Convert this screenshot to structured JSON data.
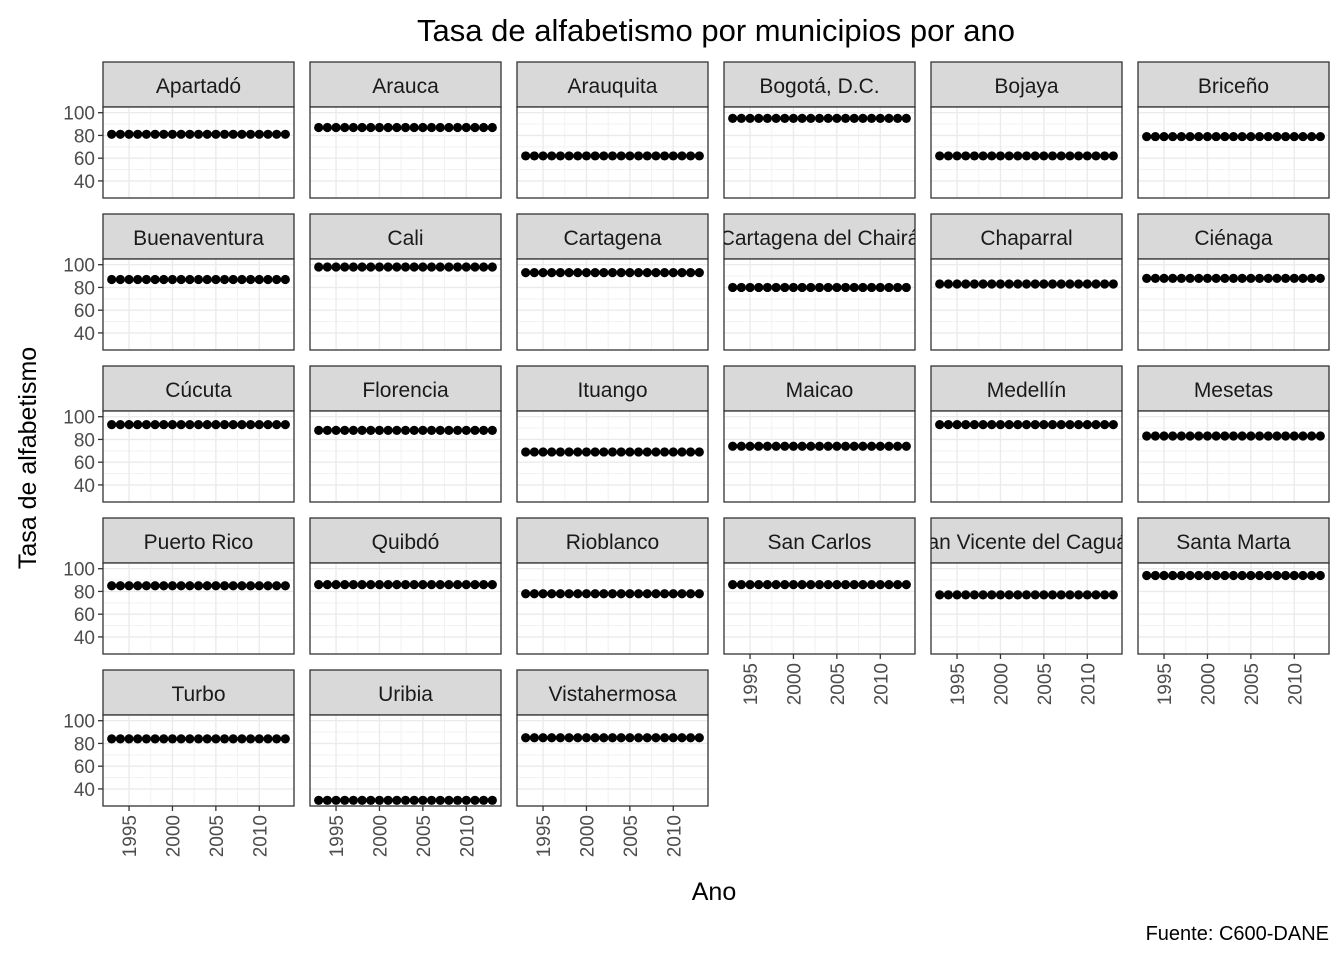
{
  "chart_data": {
    "type": "scatter",
    "title": "Tasa de alfabetismo por municipios por ano",
    "xlabel": "Ano",
    "ylabel": "Tasa de alfabetismo",
    "caption": "Fuente: C600-DANE",
    "x": [
      1993,
      1994,
      1995,
      1996,
      1997,
      1998,
      1999,
      2000,
      2001,
      2002,
      2003,
      2004,
      2005,
      2006,
      2007,
      2008,
      2009,
      2010,
      2011,
      2012,
      2013
    ],
    "xlim": [
      1992,
      2014
    ],
    "x_ticks": [
      1995,
      2000,
      2005,
      2010
    ],
    "x_tick_labels": [
      "1995",
      "2000",
      "2005",
      "2010"
    ],
    "ylim": [
      25,
      105
    ],
    "y_ticks": [
      40,
      60,
      80,
      100
    ],
    "y_tick_labels": [
      "40",
      "60",
      "80",
      "100"
    ],
    "grid": true,
    "facet_columns": 6,
    "series": [
      {
        "name": "Apartadó",
        "value": 81
      },
      {
        "name": "Arauca",
        "value": 87
      },
      {
        "name": "Arauquita",
        "value": 62
      },
      {
        "name": "Bogotá, D.C.",
        "value": 95
      },
      {
        "name": "Bojaya",
        "value": 62
      },
      {
        "name": "Briceño",
        "value": 79
      },
      {
        "name": "Buenaventura",
        "value": 87
      },
      {
        "name": "Cali",
        "value": 98
      },
      {
        "name": "Cartagena",
        "value": 93
      },
      {
        "name": "Cartagena del Chairá",
        "value": 80
      },
      {
        "name": "Chaparral",
        "value": 83
      },
      {
        "name": "Ciénaga",
        "value": 88
      },
      {
        "name": "Cúcuta",
        "value": 93
      },
      {
        "name": "Florencia",
        "value": 88
      },
      {
        "name": "Ituango",
        "value": 69
      },
      {
        "name": "Maicao",
        "value": 74
      },
      {
        "name": "Medellín",
        "value": 93
      },
      {
        "name": "Mesetas",
        "value": 83
      },
      {
        "name": "Puerto Rico",
        "value": 85
      },
      {
        "name": "Quibdó",
        "value": 86
      },
      {
        "name": "Rioblanco",
        "value": 78
      },
      {
        "name": "San Carlos",
        "value": 86
      },
      {
        "name": "San Vicente del Caguán",
        "value": 77
      },
      {
        "name": "Santa Marta",
        "value": 94
      },
      {
        "name": "Turbo",
        "value": 84
      },
      {
        "name": "Uribia",
        "value": 30
      },
      {
        "name": "Vistahermosa",
        "value": 85
      }
    ],
    "colors": {
      "point": "#000000",
      "strip_fill": "#d9d9d9",
      "panel_border": "#333333",
      "grid": "#ebebeb",
      "tick_text": "#4d4d4d"
    }
  }
}
